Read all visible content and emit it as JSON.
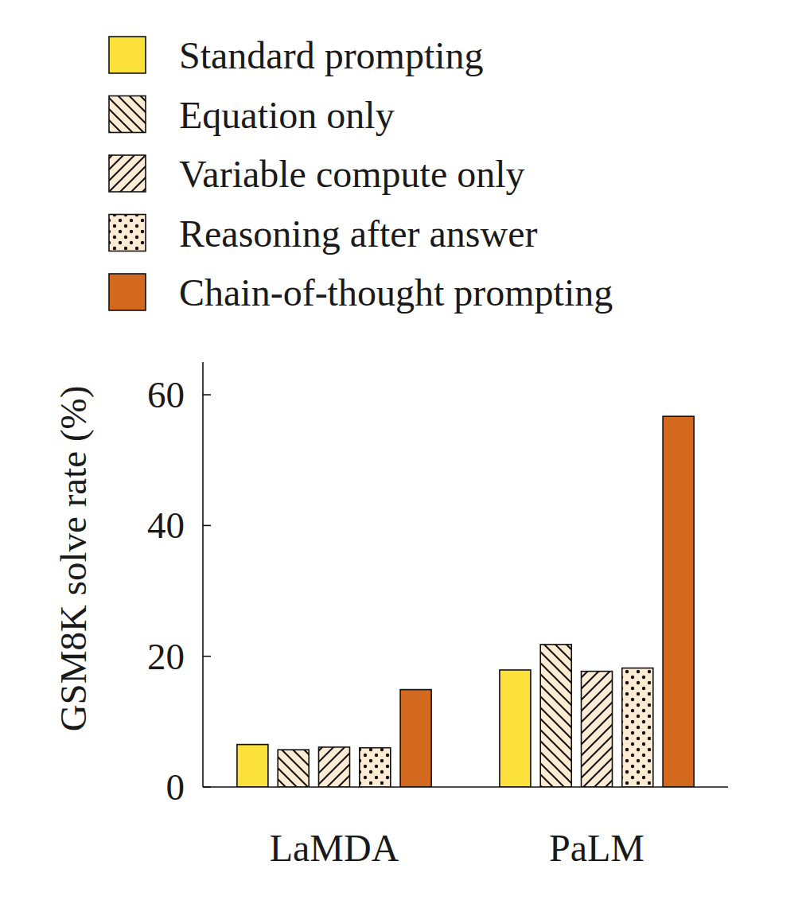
{
  "chart_data": {
    "type": "bar",
    "y_label": "GSM8K solve rate (%)",
    "categories": [
      "LaMDA",
      "PaLM"
    ],
    "series": [
      {
        "name": "Standard prompting",
        "color": "#fde13b",
        "values": [
          6.5,
          17.9
        ]
      },
      {
        "name": "Equation only",
        "color": "#fdebd3",
        "values": [
          5.7,
          21.8
        ]
      },
      {
        "name": "Variable compute only",
        "color": "#fdebd3",
        "values": [
          6.1,
          17.7
        ]
      },
      {
        "name": "Reasoning after answer",
        "color": "#fdebd3",
        "values": [
          6.0,
          18.2
        ]
      },
      {
        "name": "Chain-of-thought prompting",
        "color": "#d2691f",
        "values": [
          14.9,
          56.7
        ]
      }
    ],
    "ylim": [
      0,
      65
    ],
    "yticks": [
      0,
      20,
      40,
      60
    ],
    "grid": false,
    "legend": "top-left"
  }
}
